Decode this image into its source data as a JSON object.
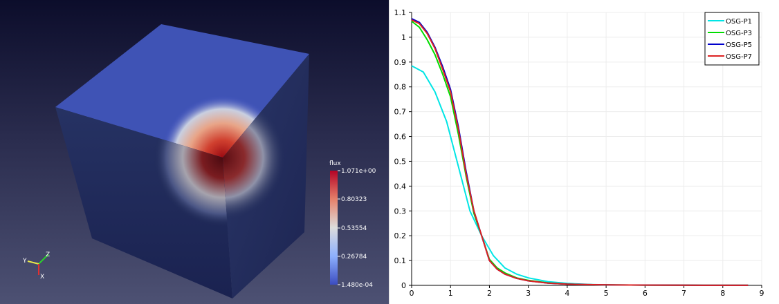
{
  "render_view": {
    "colorbar": {
      "title": "flux",
      "labels": [
        "1.071e+00",
        "0.80323",
        "0.53554",
        "0.26784",
        "1.480e-04"
      ],
      "colors": {
        "top": "#b40426",
        "mid": "#dddcdc",
        "bottom": "#3b4cc0"
      }
    },
    "axes_triad": {
      "x": "X",
      "y": "Y",
      "z": "Z"
    }
  },
  "chart_data": {
    "type": "line",
    "title": "",
    "xlabel": "",
    "ylabel": "",
    "xlim": [
      0,
      9
    ],
    "ylim": [
      0,
      1.1
    ],
    "x_ticks": [
      "0",
      "1",
      "2",
      "3",
      "4",
      "5",
      "6",
      "7",
      "8",
      "9"
    ],
    "y_ticks": [
      "0",
      "0.1",
      "0.2",
      "0.3",
      "0.4",
      "0.5",
      "0.6",
      "0.7",
      "0.8",
      "0.9",
      "1",
      "1.1"
    ],
    "grid": true,
    "legend_position": "top-right",
    "series": [
      {
        "name": "OSG-P1",
        "color": "#00e5e5",
        "x": [
          0,
          0.3,
          0.6,
          0.9,
          1.2,
          1.5,
          1.8,
          2.1,
          2.4,
          2.7,
          3.0,
          3.5,
          4.0,
          4.5,
          5.0,
          6.0,
          7.0,
          8.0,
          8.65
        ],
        "y": [
          0.885,
          0.86,
          0.78,
          0.66,
          0.48,
          0.3,
          0.2,
          0.12,
          0.07,
          0.045,
          0.03,
          0.015,
          0.008,
          0.004,
          0.002,
          0.001,
          0.0005,
          0.0003,
          0.0002
        ]
      },
      {
        "name": "OSG-P3",
        "color": "#00dd00",
        "x": [
          0,
          0.2,
          0.4,
          0.6,
          0.8,
          1.0,
          1.2,
          1.4,
          1.6,
          1.8,
          2.0,
          2.2,
          2.4,
          2.7,
          3.0,
          3.5,
          4.0,
          4.5,
          5.0,
          6.0,
          7.0,
          8.0,
          8.65
        ],
        "y": [
          1.065,
          1.04,
          0.99,
          0.93,
          0.85,
          0.76,
          0.61,
          0.44,
          0.29,
          0.2,
          0.105,
          0.07,
          0.05,
          0.03,
          0.02,
          0.01,
          0.005,
          0.003,
          0.002,
          0.001,
          0.0005,
          0.0003,
          0.0002
        ]
      },
      {
        "name": "OSG-P5",
        "color": "#0000cc",
        "x": [
          0,
          0.2,
          0.4,
          0.6,
          0.8,
          1.0,
          1.2,
          1.4,
          1.6,
          1.8,
          2.0,
          2.2,
          2.4,
          2.7,
          3.0,
          3.5,
          4.0,
          4.5,
          5.0,
          6.0,
          7.0,
          8.0,
          8.65
        ],
        "y": [
          1.075,
          1.06,
          1.02,
          0.96,
          0.88,
          0.79,
          0.64,
          0.46,
          0.3,
          0.2,
          0.1,
          0.065,
          0.045,
          0.028,
          0.018,
          0.009,
          0.005,
          0.003,
          0.002,
          0.001,
          0.0005,
          0.0003,
          0.0002
        ]
      },
      {
        "name": "OSG-P7",
        "color": "#dd2222",
        "x": [
          0,
          0.2,
          0.4,
          0.6,
          0.8,
          1.0,
          1.2,
          1.4,
          1.6,
          1.8,
          2.0,
          2.2,
          2.4,
          2.7,
          3.0,
          3.5,
          4.0,
          4.5,
          5.0,
          6.0,
          7.0,
          8.0,
          8.65
        ],
        "y": [
          1.07,
          1.055,
          1.015,
          0.955,
          0.87,
          0.78,
          0.63,
          0.45,
          0.3,
          0.2,
          0.1,
          0.065,
          0.045,
          0.028,
          0.018,
          0.009,
          0.005,
          0.003,
          0.002,
          0.001,
          0.0005,
          0.0003,
          0.0002
        ]
      }
    ]
  }
}
